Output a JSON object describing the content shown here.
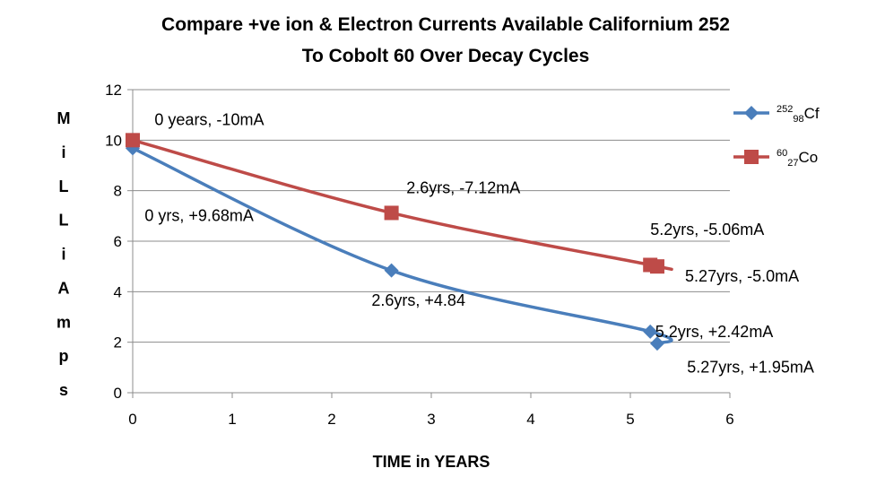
{
  "chart_data": {
    "type": "line",
    "title_lines": [
      "Compare +ve ion & Electron Currents Available Californium 252",
      "To Cobolt 60 Over Decay Cycles"
    ],
    "xlabel": "TIME in YEARS",
    "ylabel": "MiLLiAmps",
    "xlim": [
      0,
      6
    ],
    "ylim": [
      0,
      12
    ],
    "xticks": [
      0,
      1,
      2,
      3,
      4,
      5,
      6
    ],
    "yticks": [
      0,
      2,
      4,
      6,
      8,
      10,
      12
    ],
    "grid": "horizontal",
    "legend_position": "right",
    "series": [
      {
        "legend": {
          "sup1": "252",
          "sub": "98",
          "base": "Cf"
        },
        "color": "#4a7ebb",
        "marker": "diamond",
        "x": [
          0,
          2.6,
          5.2,
          5.27
        ],
        "y": [
          9.68,
          4.84,
          2.42,
          1.95
        ]
      },
      {
        "legend": {
          "sup1": "60",
          "sub": "27",
          "base": "Co"
        },
        "color": "#be4b48",
        "marker": "square",
        "x": [
          0,
          2.6,
          5.2,
          5.27
        ],
        "y": [
          10,
          7.12,
          5.06,
          5.0
        ]
      }
    ],
    "annotations": [
      {
        "text": "0 years, -10mA",
        "x": 0.22,
        "y": 10.6
      },
      {
        "text": "0 yrs, +9.68mA",
        "x": 0.12,
        "y": 6.8
      },
      {
        "text": "2.6yrs, -7.12mA",
        "x": 2.75,
        "y": 7.9
      },
      {
        "text": "2.6yrs, +4.84",
        "x": 2.4,
        "y": 3.45
      },
      {
        "text": "5.2yrs, -5.06mA",
        "x": 5.2,
        "y": 6.25
      },
      {
        "text": "5.27yrs, -5.0mA",
        "x": 5.55,
        "y": 4.4
      },
      {
        "text": "5.2yrs, +2.42mA",
        "x": 5.25,
        "y": 2.2
      },
      {
        "text": "5.27yrs, +1.95mA",
        "x": 5.57,
        "y": 0.8
      }
    ]
  }
}
